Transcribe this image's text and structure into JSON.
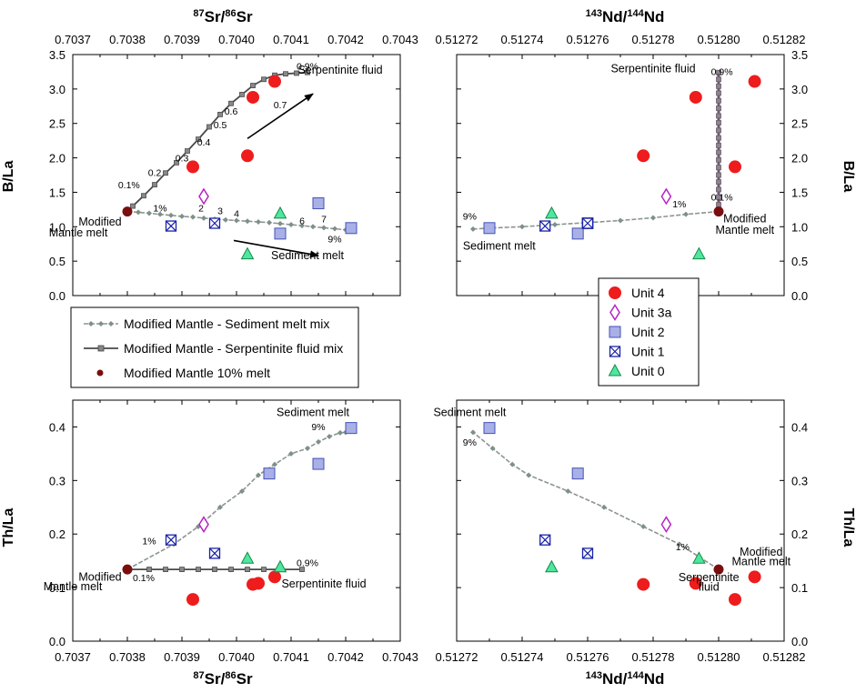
{
  "figure": {
    "axes_titles": {
      "top_left": "87Sr/86Sr",
      "top_right": "143Nd/144Nd",
      "bottom_left": "87Sr/86Sr",
      "bottom_right": "143Nd/144Nd"
    },
    "sr_axis": {
      "range": [
        0.7037,
        0.7043
      ],
      "ticks": [
        "0.7037",
        "0.7038",
        "0.7039",
        "0.7040",
        "0.7041",
        "0.7042",
        "0.7043"
      ]
    },
    "nd_axis": {
      "range": [
        0.51272,
        0.51282
      ],
      "ticks": [
        "0.51272",
        "0.51274",
        "0.51276",
        "0.51278",
        "0.51280",
        "0.51282"
      ]
    },
    "bla_axis": {
      "label": "B/La",
      "range": [
        0,
        3.5
      ],
      "ticks": [
        "0.0",
        "0.5",
        "1.0",
        "1.5",
        "2.0",
        "2.5",
        "3.0",
        "3.5"
      ]
    },
    "thla_axis": {
      "label": "Th/La",
      "range": [
        0,
        0.45
      ],
      "ticks": [
        "0.0",
        "0.1",
        "0.2",
        "0.3",
        "0.4"
      ]
    },
    "colors": {
      "unit4": "#ee1c1c",
      "unit3a": "#b522c4",
      "unit2_fill": "#a9b0e6",
      "unit2_stroke": "#4452b8",
      "unit1": "#1a23a8",
      "unit0_fill": "#4fe6a0",
      "unit0_stroke": "#138a48",
      "sediment_line": "#8b9590",
      "serpentinite_line": "#4a4a4a",
      "serp_nd_line": "#6e5a70",
      "mantle_melt": "#7a0e0e"
    }
  },
  "legend_lines": [
    {
      "key": "sed",
      "label": "Modified Mantle - Sediment melt mix"
    },
    {
      "key": "serp",
      "label": "Modified Mantle - Serpentinite fluid mix"
    },
    {
      "key": "melt",
      "label": "Modified Mantle 10% melt"
    }
  ],
  "legend_units": [
    {
      "key": "unit4",
      "label": "Unit 4"
    },
    {
      "key": "unit3a",
      "label": "Unit 3a"
    },
    {
      "key": "unit2",
      "label": "Unit 2"
    },
    {
      "key": "unit1",
      "label": "Unit 1"
    },
    {
      "key": "unit0",
      "label": "Unit 0"
    }
  ],
  "chart_data": [
    {
      "type": "scatter",
      "id": "sr_bla",
      "xlabel": "87Sr/86Sr",
      "ylabel": "B/La",
      "xlim": [
        0.7037,
        0.7043
      ],
      "ylim": [
        0,
        3.5
      ],
      "mantle_melt": {
        "x": 0.7038,
        "y": 1.22
      },
      "sediment_mix": {
        "x": [
          0.7038,
          0.70382,
          0.70384,
          0.70386,
          0.70388,
          0.7039,
          0.70392,
          0.70394,
          0.70396,
          0.70398,
          0.704,
          0.70402,
          0.70404,
          0.70406,
          0.70408,
          0.7041,
          0.70412,
          0.70414,
          0.70416,
          0.70418,
          0.7042
        ],
        "y": [
          1.22,
          1.21,
          1.195,
          1.18,
          1.165,
          1.15,
          1.14,
          1.125,
          1.11,
          1.1,
          1.09,
          1.08,
          1.07,
          1.06,
          1.045,
          1.03,
          1.015,
          1.0,
          0.985,
          0.97,
          0.955
        ]
      },
      "serpentinite_mix": {
        "x": [
          0.7038,
          0.70381,
          0.70383,
          0.70385,
          0.70387,
          0.70389,
          0.70391,
          0.70393,
          0.70395,
          0.70397,
          0.70399,
          0.70401,
          0.70403,
          0.70405,
          0.70407,
          0.70409,
          0.70411,
          0.70413
        ],
        "y": [
          1.22,
          1.3,
          1.45,
          1.61,
          1.78,
          1.93,
          2.1,
          2.27,
          2.45,
          2.63,
          2.79,
          2.92,
          3.05,
          3.14,
          3.2,
          3.22,
          3.23,
          3.24
        ]
      },
      "line_labels": [
        {
          "text": "1%",
          "x": 0.70386,
          "y": 1.22
        },
        {
          "text": "2",
          "x": 0.703935,
          "y": 1.22
        },
        {
          "text": "3",
          "x": 0.70397,
          "y": 1.18
        },
        {
          "text": "4",
          "x": 0.704,
          "y": 1.14
        },
        {
          "text": "6",
          "x": 0.70412,
          "y": 1.04
        },
        {
          "text": "7",
          "x": 0.70416,
          "y": 1.06
        },
        {
          "text": "9%",
          "x": 0.70418,
          "y": 0.77
        },
        {
          "text": "0.1%",
          "x": 0.703803,
          "y": 1.56
        },
        {
          "text": "0.2",
          "x": 0.70385,
          "y": 1.74
        },
        {
          "text": "0.3",
          "x": 0.7039,
          "y": 1.95
        },
        {
          "text": "0.4",
          "x": 0.70394,
          "y": 2.18
        },
        {
          "text": "0.5",
          "x": 0.70397,
          "y": 2.43
        },
        {
          "text": "0.6",
          "x": 0.70399,
          "y": 2.63
        },
        {
          "text": "0.7",
          "x": 0.70408,
          "y": 2.72
        },
        {
          "text": "0.9%",
          "x": 0.70413,
          "y": 3.28
        },
        {
          "text": "Serpentinite fluid",
          "x": 0.70419,
          "y": 3.22
        },
        {
          "text": "Sediment melt",
          "x": 0.70413,
          "y": 0.53
        },
        {
          "text": "Modified",
          "x": 0.70375,
          "y": 1.02
        },
        {
          "text": "Mantle melt",
          "x": 0.70371,
          "y": 0.86
        }
      ],
      "arrows": [
        {
          "from": [
            0.70402,
            2.28
          ],
          "to": [
            0.70414,
            2.93
          ]
        },
        {
          "from": [
            0.703995,
            0.8
          ],
          "to": [
            0.70415,
            0.58
          ]
        }
      ],
      "units": {
        "unit4": [
          [
            0.70392,
            1.87
          ],
          [
            0.70402,
            2.03
          ],
          [
            0.70403,
            2.88
          ],
          [
            0.70407,
            3.11
          ]
        ],
        "unit3a": [
          [
            0.70394,
            1.44
          ]
        ],
        "unit2": [
          [
            0.70408,
            0.9
          ],
          [
            0.70415,
            1.34
          ],
          [
            0.70421,
            0.98
          ]
        ],
        "unit1": [
          [
            0.70388,
            1.01
          ],
          [
            0.70396,
            1.05
          ]
        ],
        "unit0": [
          [
            0.70402,
            0.6
          ],
          [
            0.70408,
            1.19
          ]
        ]
      }
    },
    {
      "type": "scatter",
      "id": "nd_bla",
      "xlabel": "143Nd/144Nd",
      "ylabel": "B/La",
      "xlim": [
        0.51272,
        0.51282
      ],
      "ylim": [
        0,
        3.5
      ],
      "mantle_melt": {
        "x": 0.5128,
        "y": 1.22
      },
      "sediment_mix": {
        "x": [
          0.5128,
          0.51279,
          0.51278,
          0.51277,
          0.51276,
          0.51275,
          0.51274,
          0.51273,
          0.512725
        ],
        "y": [
          1.22,
          1.18,
          1.13,
          1.09,
          1.06,
          1.03,
          1.0,
          0.98,
          0.965
        ]
      },
      "serpentinite_mix": {
        "x": [
          0.5128,
          0.5128,
          0.5128,
          0.5128,
          0.5128,
          0.5128,
          0.5128,
          0.5128,
          0.5128,
          0.5128,
          0.5128,
          0.5128,
          0.5128,
          0.5128,
          0.5128,
          0.5128,
          0.5128,
          0.5128,
          0.5128,
          0.5128
        ],
        "y": [
          1.22,
          1.32,
          1.43,
          1.54,
          1.65,
          1.75,
          1.86,
          1.97,
          2.08,
          2.18,
          2.29,
          2.4,
          2.51,
          2.61,
          2.72,
          2.83,
          2.94,
          3.04,
          3.14,
          3.24
        ]
      },
      "line_labels": [
        {
          "text": "9%",
          "x": 512724,
          "y": 1.1
        },
        {
          "text": "1%",
          "x": 512788,
          "y": 1.28
        },
        {
          "text": "0.1%",
          "x": 512801,
          "y": 1.38
        },
        {
          "text": "0.9%",
          "x": 512801,
          "y": 3.2
        },
        {
          "text": "Serpentinite fluid",
          "x": 512780,
          "y": 3.24
        },
        {
          "text": "Sediment melt",
          "x": 512733,
          "y": 0.67
        },
        {
          "text": "Modified",
          "x": 512808,
          "y": 1.06
        },
        {
          "text": "Mantle melt",
          "x": 512808,
          "y": 0.9
        }
      ],
      "units": {
        "unit4": [
          [
            0.512777,
            2.03
          ],
          [
            0.512793,
            2.88
          ],
          [
            0.512805,
            1.87
          ],
          [
            0.512811,
            3.11
          ]
        ],
        "unit3a": [
          [
            0.512784,
            1.44
          ]
        ],
        "unit2": [
          [
            0.51273,
            0.98
          ],
          [
            0.512757,
            0.9
          ],
          [
            0.51276,
            1.05
          ]
        ],
        "unit1": [
          [
            0.512747,
            1.01
          ],
          [
            0.51276,
            1.05
          ]
        ],
        "unit0": [
          [
            0.512749,
            1.19
          ],
          [
            0.512794,
            0.6
          ]
        ]
      }
    },
    {
      "type": "scatter",
      "id": "sr_thla",
      "xlabel": "87Sr/86Sr",
      "ylabel": "Th/La",
      "xlim": [
        0.7037,
        0.7043
      ],
      "ylim": [
        0,
        0.45
      ],
      "mantle_melt": {
        "x": 0.7038,
        "y": 0.134
      },
      "sediment_mix": {
        "x": [
          0.7038,
          0.703885,
          0.70393,
          0.70397,
          0.70401,
          0.70404,
          0.70407,
          0.7041,
          0.70413,
          0.70415,
          0.70417,
          0.70419,
          0.7042
        ],
        "y": [
          0.134,
          0.181,
          0.214,
          0.25,
          0.28,
          0.31,
          0.33,
          0.35,
          0.36,
          0.372,
          0.382,
          0.389,
          0.39
        ]
      },
      "serpentinite_mix": {
        "x": [
          0.7038,
          0.70384,
          0.70387,
          0.7039,
          0.70393,
          0.70396,
          0.70399,
          0.70402,
          0.70405,
          0.70408,
          0.70412
        ],
        "y": [
          0.134,
          0.134,
          0.134,
          0.134,
          0.134,
          0.134,
          0.134,
          0.134,
          0.134,
          0.134,
          0.134
        ]
      },
      "line_labels": [
        {
          "text": "Sediment melt",
          "x": 0.70414,
          "y": 0.42
        },
        {
          "text": "9%",
          "x": 0.70415,
          "y": 0.394
        },
        {
          "text": "1%",
          "x": 0.70384,
          "y": 0.181
        },
        {
          "text": "0.1%",
          "x": 0.70383,
          "y": 0.112
        },
        {
          "text": "0.9%",
          "x": 0.70413,
          "y": 0.14
        },
        {
          "text": "Serpentinite fluid",
          "x": 0.70416,
          "y": 0.1
        },
        {
          "text": "Modified",
          "x": 0.70375,
          "y": 0.113
        },
        {
          "text": "Mantle melt",
          "x": 0.7037,
          "y": 0.095
        }
      ],
      "units": {
        "unit4": [
          [
            0.70392,
            0.078
          ],
          [
            0.70403,
            0.106
          ],
          [
            0.70404,
            0.108
          ],
          [
            0.70407,
            0.12
          ]
        ],
        "unit3a": [
          [
            0.70394,
            0.218
          ]
        ],
        "unit2": [
          [
            0.70406,
            0.313
          ],
          [
            0.70415,
            0.331
          ],
          [
            0.70421,
            0.398
          ]
        ],
        "unit1": [
          [
            0.70388,
            0.189
          ],
          [
            0.70396,
            0.164
          ]
        ],
        "unit0": [
          [
            0.70402,
            0.154
          ],
          [
            0.70408,
            0.138
          ]
        ]
      }
    },
    {
      "type": "scatter",
      "id": "nd_thla",
      "xlabel": "143Nd/144Nd",
      "ylabel": "Th/La",
      "xlim": [
        0.51272,
        0.51282
      ],
      "ylim": [
        0,
        0.45
      ],
      "mantle_melt": {
        "x": 0.5128,
        "y": 0.134
      },
      "sediment_mix": {
        "x": [
          0.5128,
          0.512788,
          0.512777,
          0.512765,
          0.512754,
          0.512742,
          0.512737,
          0.512731,
          0.512725
        ],
        "y": [
          0.134,
          0.181,
          0.214,
          0.25,
          0.28,
          0.31,
          0.33,
          0.36,
          0.39
        ]
      },
      "serpentinite_mix": {
        "x": [],
        "y": []
      },
      "line_labels": [
        {
          "text": "Sediment melt",
          "x": 512724,
          "y": 0.42
        },
        {
          "text": "9%",
          "x": 512724,
          "y": 0.365
        },
        {
          "text": "1%",
          "x": 512789,
          "y": 0.17
        },
        {
          "text": "Modified",
          "x": 512813,
          "y": 0.16
        },
        {
          "text": "Mantle melt",
          "x": 512813,
          "y": 0.142
        },
        {
          "text": "Serpentinite",
          "x": 512797,
          "y": 0.112
        },
        {
          "text": "fluid",
          "x": 512797,
          "y": 0.094
        }
      ],
      "units": {
        "unit4": [
          [
            0.512777,
            0.106
          ],
          [
            0.512793,
            0.108
          ],
          [
            0.512805,
            0.078
          ],
          [
            0.512811,
            0.12
          ]
        ],
        "unit3a": [
          [
            0.512784,
            0.218
          ]
        ],
        "unit2": [
          [
            0.51273,
            0.398
          ],
          [
            0.512757,
            0.313
          ]
        ],
        "unit1": [
          [
            0.512747,
            0.189
          ],
          [
            0.51276,
            0.164
          ]
        ],
        "unit0": [
          [
            0.512749,
            0.138
          ],
          [
            0.512794,
            0.154
          ]
        ]
      }
    }
  ]
}
